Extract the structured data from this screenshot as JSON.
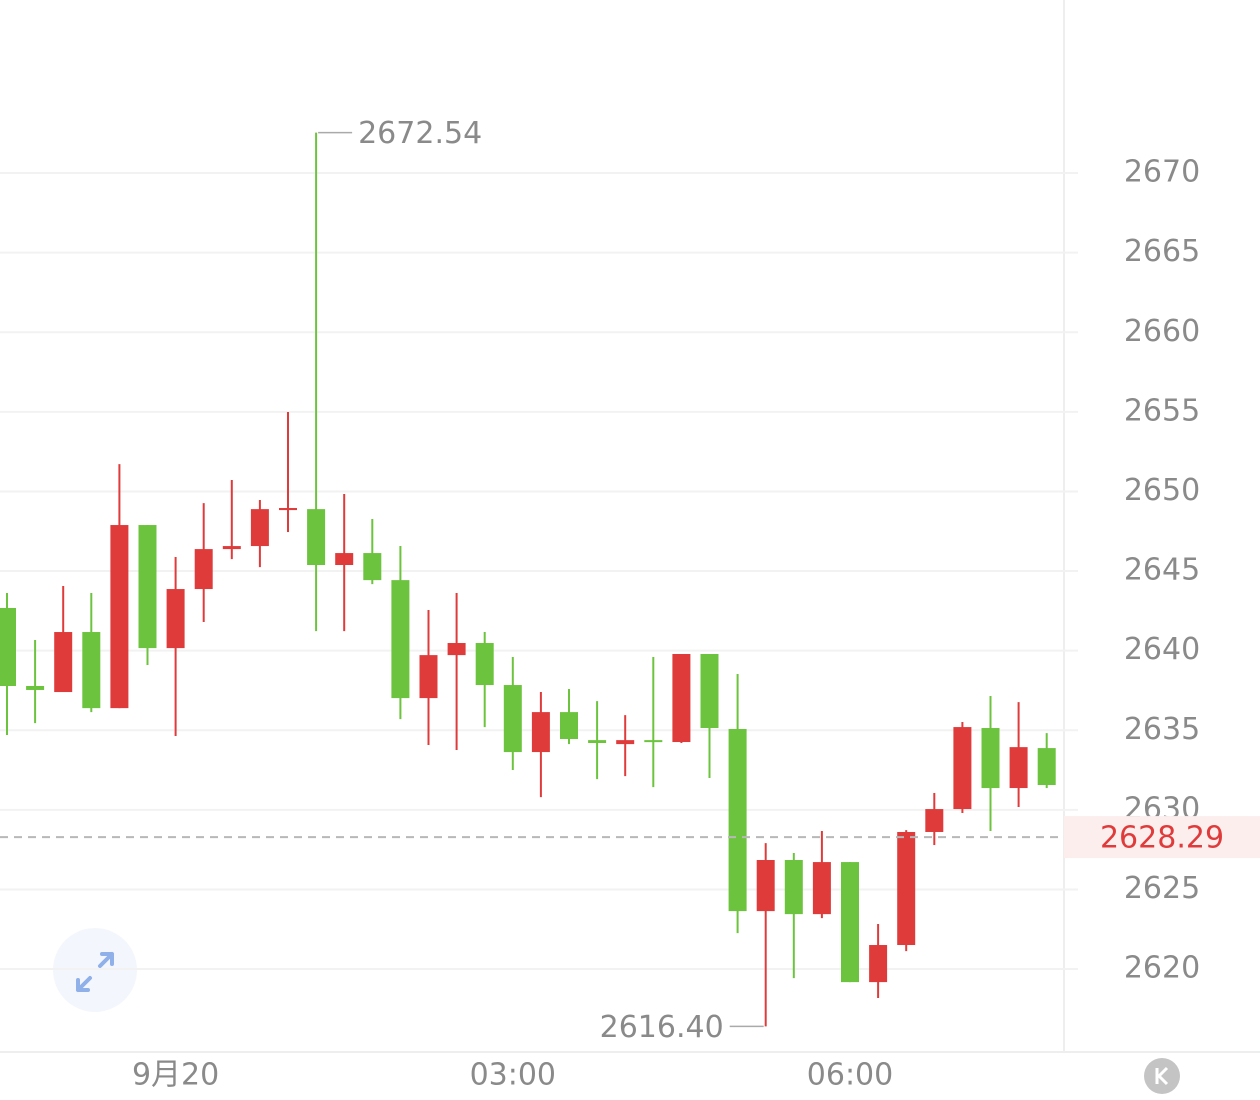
{
  "chart_data": {
    "type": "candlestick",
    "categories": [
      null,
      null,
      null,
      null,
      null,
      null,
      "9月20",
      null,
      null,
      null,
      null,
      null,
      null,
      null,
      null,
      null,
      null,
      null,
      "03:00",
      null,
      null,
      null,
      null,
      null,
      null,
      null,
      null,
      null,
      null,
      null,
      "06:00",
      null,
      null,
      null,
      null,
      null,
      null,
      null
    ],
    "open": [
      2642.68,
      2637.78,
      2637.4,
      2641.17,
      2636.39,
      2647.89,
      2640.16,
      2643.87,
      2646.38,
      2646.57,
      2648.83,
      2648.89,
      2645.38,
      2646.13,
      2644.43,
      2637.02,
      2639.72,
      2640.48,
      2637.84,
      2633.63,
      2636.14,
      2634.38,
      2634.13,
      2634.38,
      2634.26,
      2639.79,
      2635.08,
      2623.64,
      2626.85,
      2623.45,
      2626.72,
      2619.18,
      2621.51,
      2628.61,
      2630.05,
      2635.14,
      2631.37,
      2633.88
    ],
    "high": [
      2643.62,
      2640.67,
      2644.06,
      2643.62,
      2651.72,
      2647.89,
      2645.88,
      2649.27,
      2650.72,
      2649.46,
      2654.99,
      2672.54,
      2649.84,
      2648.27,
      2646.57,
      2642.55,
      2643.62,
      2641.17,
      2639.6,
      2637.4,
      2637.59,
      2636.83,
      2635.95,
      2639.6,
      2639.79,
      2639.79,
      2638.53,
      2627.91,
      2627.29,
      2628.67,
      2626.72,
      2622.83,
      2628.73,
      2631.06,
      2635.52,
      2637.15,
      2636.77,
      2634.82
    ],
    "low": [
      2634.7,
      2635.45,
      2637.4,
      2636.14,
      2636.39,
      2639.1,
      2634.64,
      2641.8,
      2645.75,
      2645.25,
      2647.45,
      2641.23,
      2641.23,
      2644.18,
      2635.7,
      2634.07,
      2633.76,
      2635.2,
      2632.5,
      2630.8,
      2634.13,
      2631.93,
      2632.12,
      2631.43,
      2634.2,
      2632.0,
      2622.26,
      2616.4,
      2619.43,
      2623.2,
      2619.18,
      2618.18,
      2621.13,
      2627.79,
      2629.8,
      2628.67,
      2630.18,
      2631.37
    ],
    "close": [
      2637.78,
      2637.53,
      2641.17,
      2636.39,
      2647.89,
      2640.16,
      2643.87,
      2646.38,
      2646.57,
      2648.89,
      2648.96,
      2645.38,
      2646.13,
      2644.43,
      2637.02,
      2639.72,
      2640.48,
      2637.84,
      2633.63,
      2636.14,
      2634.45,
      2634.2,
      2634.38,
      2634.26,
      2639.79,
      2635.14,
      2623.64,
      2626.85,
      2623.45,
      2626.72,
      2619.18,
      2621.51,
      2628.61,
      2630.05,
      2635.2,
      2631.37,
      2633.94,
      2631.56
    ],
    "up_color": "#e03b3b",
    "down_color": "#6cc33d",
    "max_label": "2672.54",
    "min_label": "2616.40",
    "last_price": 2628.29,
    "last_price_color": "#e03b3b",
    "ylim": [
      2614.79,
      2680.87
    ],
    "yticks": [
      2620,
      2625,
      2630,
      2635,
      2640,
      2645,
      2650,
      2655,
      2660,
      2665,
      2670
    ],
    "grid": true
  }
}
